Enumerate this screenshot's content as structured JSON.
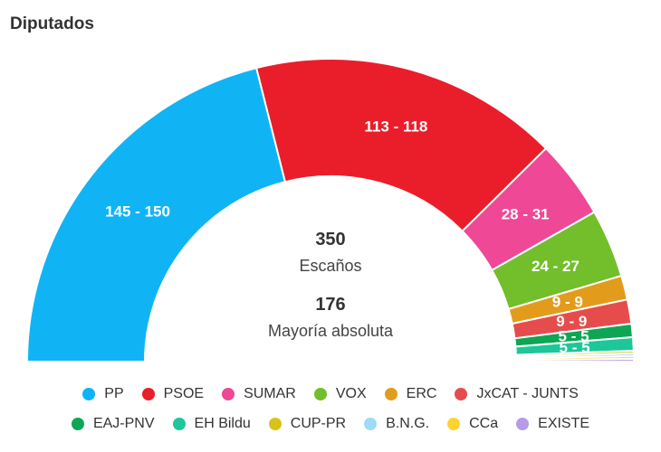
{
  "chart_data": {
    "type": "pie",
    "subtype": "semicircle-parliament",
    "title": "Diputados",
    "center": {
      "total": "350",
      "total_label": "Escaños",
      "majority": "176",
      "majority_label": "Mayoría absoluta"
    },
    "series": [
      {
        "name": "PP",
        "label": "145 - 150",
        "min": 145,
        "max": 150,
        "value": 147.5,
        "color": "#10b4f5"
      },
      {
        "name": "PSOE",
        "label": "113 - 118",
        "min": 113,
        "max": 118,
        "value": 115.5,
        "color": "#ea1e2a"
      },
      {
        "name": "SUMAR",
        "label": "28 - 31",
        "min": 28,
        "max": 31,
        "value": 29.5,
        "color": "#ee4896"
      },
      {
        "name": "VOX",
        "label": "24 - 27",
        "min": 24,
        "max": 27,
        "value": 25.5,
        "color": "#72be2b"
      },
      {
        "name": "ERC",
        "label": "9 - 9",
        "min": 9,
        "max": 9,
        "value": 9,
        "color": "#e39b1c"
      },
      {
        "name": "JxCAT - JUNTS",
        "label": "9 - 9",
        "min": 9,
        "max": 9,
        "value": 9,
        "color": "#e74c4c"
      },
      {
        "name": "EAJ-PNV",
        "label": "5 - 5",
        "min": 5,
        "max": 5,
        "value": 5,
        "color": "#0ea554"
      },
      {
        "name": "EH Bildu",
        "label": "5 - 5",
        "min": 5,
        "max": 5,
        "value": 5,
        "color": "#1dc79a"
      },
      {
        "name": "CUP-PR",
        "label": "",
        "min": 1,
        "max": 1,
        "value": 1,
        "color": "#d9c21a"
      },
      {
        "name": "B.N.G.",
        "label": "",
        "min": 1,
        "max": 1,
        "value": 1,
        "color": "#9cdcf8"
      },
      {
        "name": "CCa",
        "label": "",
        "min": 1,
        "max": 1,
        "value": 1,
        "color": "#fdd42f"
      },
      {
        "name": "EXISTE",
        "label": "",
        "min": 1,
        "max": 1,
        "value": 1,
        "color": "#b79ae8"
      }
    ],
    "legend_rows": [
      [
        "PP",
        "PSOE",
        "SUMAR",
        "VOX",
        "ERC",
        "JxCAT - JUNTS"
      ],
      [
        "EAJ-PNV",
        "EH Bildu",
        "CUP-PR",
        "B.N.G.",
        "CCa",
        "EXISTE"
      ]
    ],
    "legend_position": "bottom"
  }
}
